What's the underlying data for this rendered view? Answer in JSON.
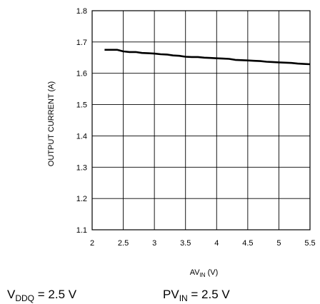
{
  "chart_data": {
    "type": "line",
    "xlabel": {
      "main": "AV",
      "sub": "IN",
      "unit": " (V)"
    },
    "ylabel": "OUTPUT CURRENT (A)",
    "xlim": [
      2,
      5.5
    ],
    "ylim": [
      1.1,
      1.8
    ],
    "x_ticks": [
      2,
      2.5,
      3,
      3.5,
      4,
      4.5,
      5,
      5.5
    ],
    "x_tick_labels": [
      "2",
      "2.5",
      "3",
      "3.5",
      "4",
      "4.5",
      "5",
      "5.5"
    ],
    "y_ticks": [
      1.1,
      1.2,
      1.3,
      1.4,
      1.5,
      1.6,
      1.7,
      1.8
    ],
    "y_tick_labels": [
      "1.1",
      "1.2",
      "1.3",
      "1.4",
      "1.5",
      "1.6",
      "1.7",
      "1.8"
    ],
    "grid": true,
    "series": [
      {
        "color": "#000000",
        "x": [
          2.2,
          2.3,
          2.4,
          2.5,
          2.6,
          2.7,
          2.8,
          2.9,
          3.0,
          3.1,
          3.2,
          3.3,
          3.4,
          3.5,
          3.6,
          3.7,
          3.8,
          3.9,
          4.0,
          4.1,
          4.2,
          4.3,
          4.4,
          4.5,
          4.6,
          4.7,
          4.8,
          4.9,
          5.0,
          5.1,
          5.2,
          5.3,
          5.4,
          5.5
        ],
        "y": [
          1.675,
          1.675,
          1.675,
          1.67,
          1.668,
          1.668,
          1.665,
          1.664,
          1.663,
          1.661,
          1.66,
          1.657,
          1.656,
          1.653,
          1.652,
          1.652,
          1.65,
          1.649,
          1.648,
          1.647,
          1.646,
          1.643,
          1.642,
          1.641,
          1.64,
          1.639,
          1.637,
          1.636,
          1.635,
          1.634,
          1.633,
          1.631,
          1.63,
          1.629
        ]
      }
    ]
  },
  "conditions": [
    {
      "main": "V",
      "sub": "DDQ",
      "rest": " = 2.5 V"
    },
    {
      "main": "PV",
      "sub": "IN",
      "rest": " = 2.5 V"
    }
  ]
}
